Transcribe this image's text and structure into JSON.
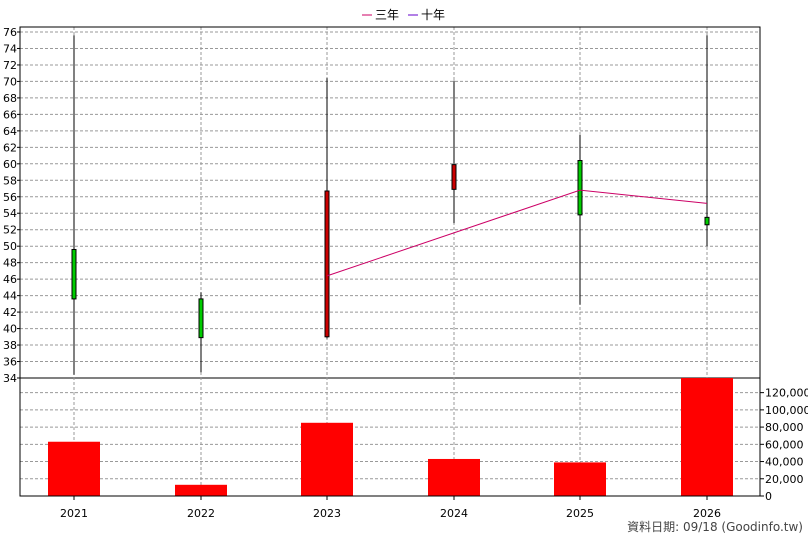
{
  "chart_data": {
    "type": "candlestick",
    "legend": [
      {
        "label": "三年",
        "color": "#cc0066"
      },
      {
        "label": "十年",
        "color": "#6600cc"
      }
    ],
    "categories": [
      "2021",
      "2022",
      "2023",
      "2024",
      "2025",
      "2026"
    ],
    "candles": [
      {
        "year": "2021",
        "open": 43.6,
        "close": 49.6,
        "high": 75.6,
        "low": 34.4,
        "color": "#00cc00"
      },
      {
        "year": "2022",
        "open": 38.9,
        "close": 43.6,
        "high": 44.4,
        "low": 34.7,
        "color": "#00cc00"
      },
      {
        "year": "2023",
        "open": 39.0,
        "close": 56.7,
        "high": 70.4,
        "low": 38.8,
        "color": "#cc0000"
      },
      {
        "year": "2024",
        "open": 56.9,
        "close": 59.9,
        "high": 70.1,
        "low": 52.8,
        "color": "#cc0000"
      },
      {
        "year": "2025",
        "open": 53.8,
        "close": 60.4,
        "high": 63.5,
        "low": 42.9,
        "color": "#00cc00"
      },
      {
        "year": "2026",
        "open": 52.6,
        "close": 53.5,
        "high": 75.6,
        "low": 50.0,
        "color": "#00cc00"
      }
    ],
    "three_year_line": [
      {
        "year": "2023",
        "value": 46.4
      },
      {
        "year": "2025",
        "value": 56.8
      },
      {
        "year": "2026",
        "value": 55.2
      }
    ],
    "price_axis": {
      "min": 34,
      "max": 76,
      "step": 2
    },
    "volume": {
      "values": [
        63000,
        13000,
        85000,
        43000,
        39000,
        137000
      ],
      "axis_min": 0,
      "axis_max": 137000,
      "ticks": [
        "0",
        "20,000",
        "40,000",
        "60,000",
        "80,000",
        "100,000",
        "120,000"
      ],
      "tick_values": [
        0,
        20000,
        40000,
        60000,
        80000,
        100000,
        120000
      ],
      "bar_color": "#ff0000"
    }
  },
  "footer": "資料日期: 09/18  (Goodinfo.tw)"
}
